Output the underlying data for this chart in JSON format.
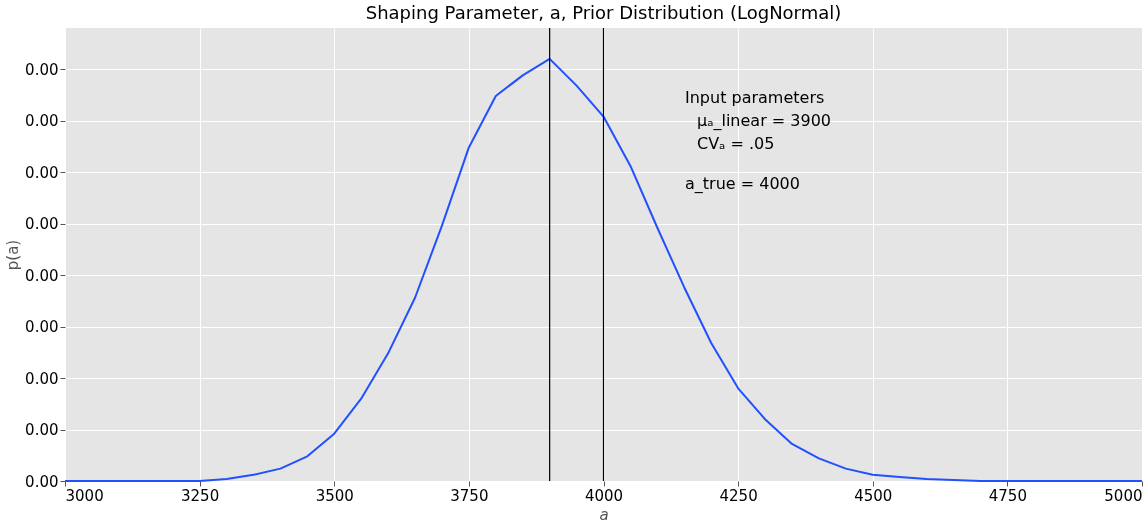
{
  "chart_data": {
    "type": "line",
    "title": "Shaping Parameter, a, Prior Distribution (LogNormal)",
    "xlabel": "a",
    "ylabel": "p(a)",
    "x": [
      3000,
      3100,
      3200,
      3250,
      3300,
      3350,
      3400,
      3450,
      3500,
      3550,
      3600,
      3650,
      3700,
      3750,
      3800,
      3850,
      3900,
      3950,
      4000,
      4050,
      4100,
      4150,
      4200,
      4250,
      4300,
      4350,
      4400,
      4450,
      4500,
      4550,
      4600,
      4700,
      4800,
      4900,
      5000
    ],
    "series": [
      {
        "color": "#2150ff",
        "values": [
          0,
          0,
          0,
          0,
          1e-05,
          3e-05,
          6e-05,
          0.00012,
          0.00023,
          0.0004,
          0.00062,
          0.00089,
          0.00124,
          0.00162,
          0.00187,
          0.00197,
          0.00205,
          0.00192,
          0.00177,
          0.00153,
          0.00123,
          0.00094,
          0.00067,
          0.00045,
          0.0003,
          0.00018,
          0.00011,
          6e-05,
          3e-05,
          2e-05,
          1e-05,
          0,
          0,
          0,
          0
        ]
      }
    ],
    "xlim": [
      3000,
      5000
    ],
    "xticks": [
      3000,
      3250,
      3500,
      3750,
      4000,
      4250,
      4500,
      4750,
      5000
    ],
    "ylim": [
      0,
      0.0022
    ],
    "yticks": [
      {
        "value": 0,
        "label": "0.00"
      },
      {
        "value": 0.00025,
        "label": "0.00"
      },
      {
        "value": 0.0005,
        "label": "0.00"
      },
      {
        "value": 0.00075,
        "label": "0.00"
      },
      {
        "value": 0.001,
        "label": "0.00"
      },
      {
        "value": 0.00125,
        "label": "0.00"
      },
      {
        "value": 0.0015,
        "label": "0.00"
      },
      {
        "value": 0.00175,
        "label": "0.00"
      },
      {
        "value": 0.002,
        "label": "0.00"
      }
    ],
    "ref_lines": [
      {
        "axis": "x",
        "value": 3900,
        "color": "#000000"
      },
      {
        "axis": "x",
        "value": 4000,
        "color": "#000000"
      }
    ],
    "annotations": [
      "Input parameters",
      "μₐ_linear = 3900",
      "CVₐ = .05",
      "a_true = 4000"
    ],
    "grid": true,
    "marker": "none",
    "line_style": "solid"
  }
}
